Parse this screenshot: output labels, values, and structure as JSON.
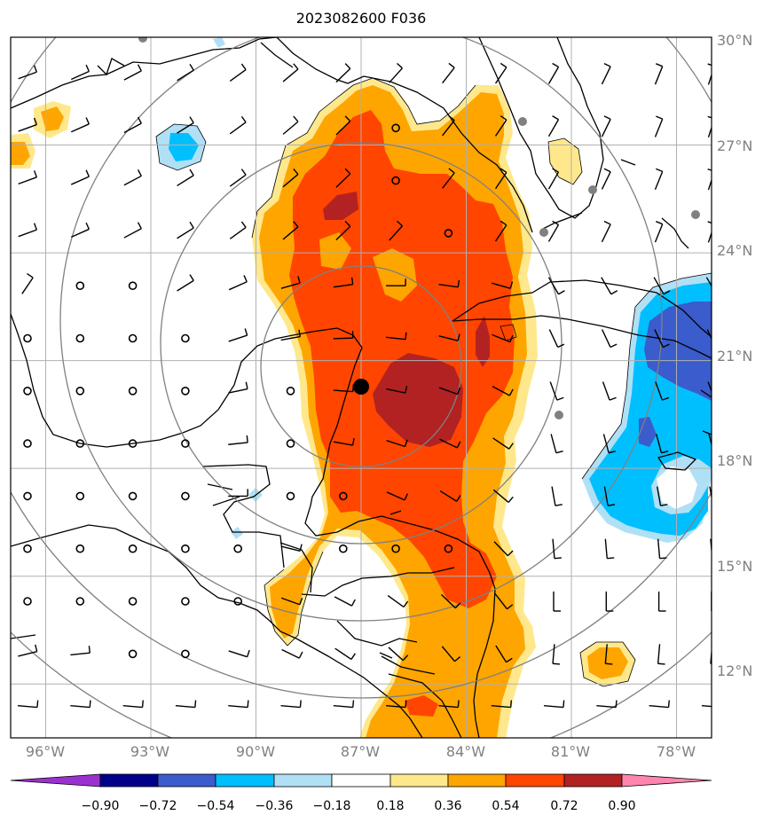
{
  "title": "2023082600 F036",
  "map": {
    "lon_range": [
      -97,
      -77
    ],
    "lat_range": [
      10.5,
      30
    ],
    "lat_ticks": [
      "30°N",
      "27°N",
      "24°N",
      "21°N",
      "18°N",
      "15°N",
      "12°N"
    ],
    "lon_ticks": [
      "96°W",
      "93°W",
      "90°W",
      "87°W",
      "84°W",
      "81°W",
      "78°W"
    ],
    "center": {
      "lon": -87,
      "lat": 20.2
    },
    "range_rings": 5,
    "colors": {
      "coast": "#000000",
      "grid": "#b0b0b0",
      "ring": "#808080"
    }
  },
  "colorbar": {
    "labels": [
      "−0.90",
      "−0.72",
      "−0.54",
      "−0.36",
      "−0.18",
      "0.18",
      "0.36",
      "0.54",
      "0.72",
      "0.90"
    ],
    "colors": [
      "#9b30d0",
      "#00008b",
      "#3a5ccc",
      "#00bfff",
      "#b0e0f5",
      "#ffffff",
      "#ffe88c",
      "#ffa500",
      "#ff4500",
      "#b22222",
      "#ff85b0"
    ]
  },
  "field_colors": {
    "neg1": "#b0e0f5",
    "neg2": "#00bfff",
    "neg3": "#3a5ccc",
    "pos1": "#ffe88c",
    "pos2": "#ffa500",
    "pos3": "#ff4500",
    "pos4": "#b22222"
  }
}
